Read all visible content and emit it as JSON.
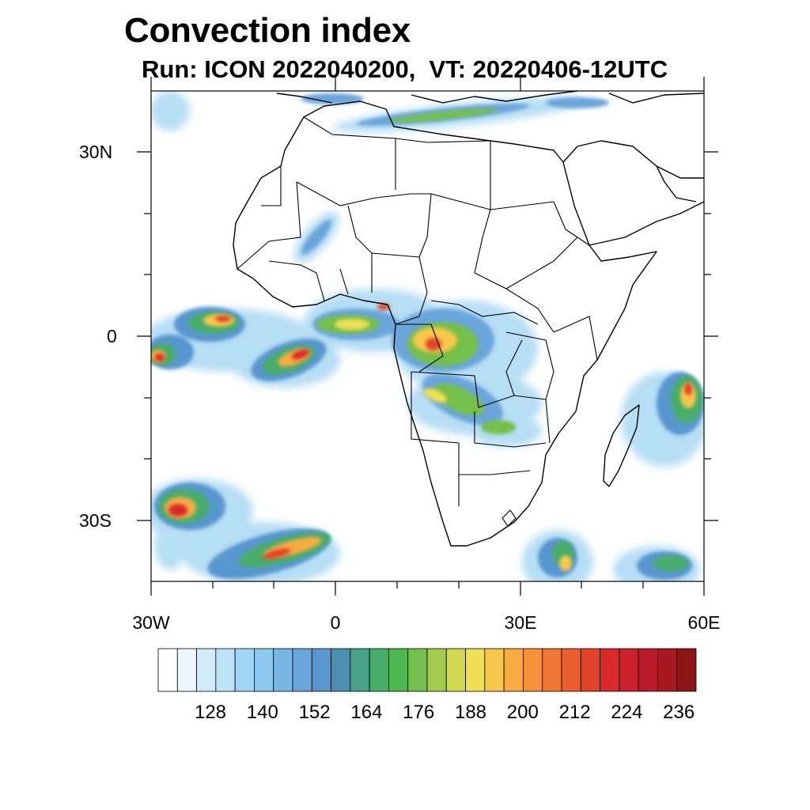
{
  "title": "Convection index",
  "subtitle": "Run: ICON 2022040200,  VT: 20220406-12UTC",
  "map": {
    "lon_range": [
      -30,
      60
    ],
    "lat_range": [
      -40,
      40
    ],
    "lat_labels": [
      "30N",
      "0",
      "30S"
    ],
    "lon_labels": [
      "30W",
      "0",
      "30E",
      "60E"
    ]
  },
  "colorbar": {
    "labels": [
      "128",
      "140",
      "152",
      "164",
      "176",
      "188",
      "200",
      "212",
      "224",
      "236"
    ],
    "colors": [
      "#ffffff",
      "#eaf5fc",
      "#d3ecfa",
      "#bde3f7",
      "#a2d6f4",
      "#8dc8ee",
      "#7ab6e4",
      "#6aa5db",
      "#5896cf",
      "#4d8fb3",
      "#49a18a",
      "#47ad69",
      "#4db84f",
      "#76bf4c",
      "#a3cc4f",
      "#cfd84f",
      "#eedf55",
      "#f7c74c",
      "#f7ab42",
      "#f5903b",
      "#f07633",
      "#eb5e2d",
      "#e34329",
      "#d92a29",
      "#cc1f2c",
      "#b81c2a",
      "#a5191f",
      "#8c1616"
    ]
  }
}
